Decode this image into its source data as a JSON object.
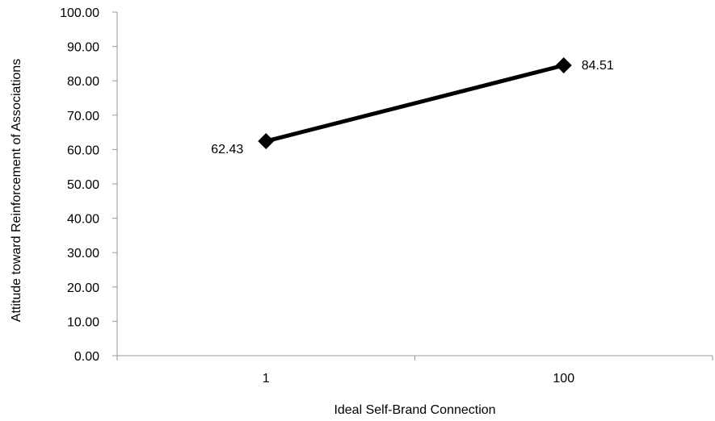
{
  "chart_data": {
    "type": "line",
    "title": "",
    "xlabel": "Ideal Self-Brand Connection",
    "ylabel": "Attitude toward Reinforcement of Associations",
    "categories": [
      "1",
      "100"
    ],
    "series": [
      {
        "values": [
          62.43,
          84.51
        ],
        "data_labels": [
          "62.43",
          "84.51"
        ],
        "marker": "diamond",
        "color": "#000000"
      }
    ],
    "ylim": [
      0,
      100
    ],
    "y_ticks": [
      "0.00",
      "10.00",
      "20.00",
      "30.00",
      "40.00",
      "50.00",
      "60.00",
      "70.00",
      "80.00",
      "90.00",
      "100.00"
    ],
    "grid": false,
    "legend": "none"
  }
}
